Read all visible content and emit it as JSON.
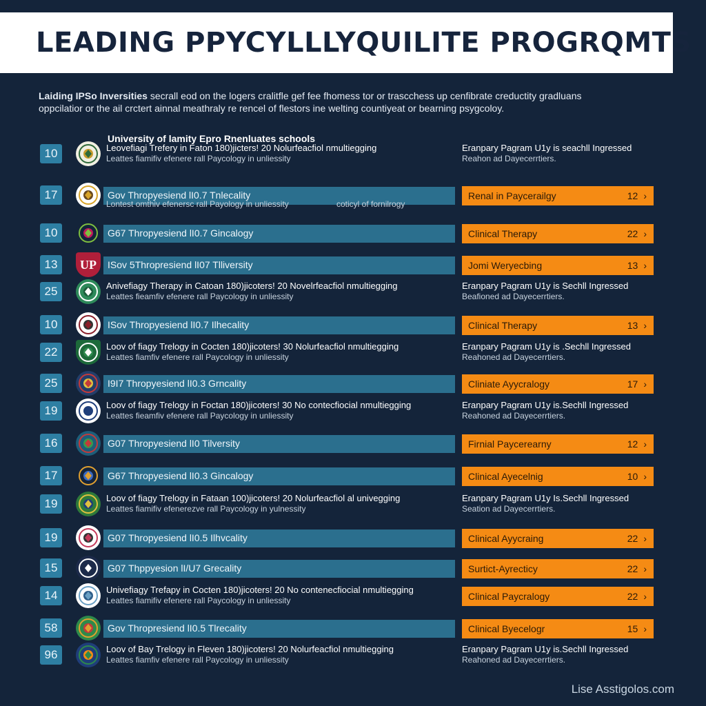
{
  "title": "LEADING PPYCYLLLYQUILITE PROGRQMTS",
  "intro": {
    "lead": "Laiding IPSo Inversities",
    "line1_rest": " secrall eod on the logers cralitfle gef fee fhomess tor or trascchess up cenfibrate creductity gradluans",
    "line2": "oppcilatior or the ail crctert ainnal meathraly re rencel of flestors ine welting countiyeat or bearning psygcoloy."
  },
  "rows": [
    {
      "num": "10",
      "type": "two",
      "head": "University of lamity Epro Rnenluates schools",
      "l1": "Leovefiagi Trefery in Faton 180)jicters! 20 Nolurfeacfiol nmultiegging",
      "l2": "Leattes fiamifiv efenere rall Paycology in unliessity",
      "r1": "Eranpary Pagram U1y is seachll Ingressed",
      "r2": "Reahon ad Dayecerrtiers.",
      "logo": {
        "bg": "#f1efe2",
        "c1": "#2f6a3a",
        "c2": "#c59a2b"
      }
    },
    {
      "num": "17",
      "type": "bar",
      "text": "Gov Thropyesiend lI0.7 Tnlecality",
      "sub": "Lontest omthiv efenersc rall Payology in unliessity",
      "sub2": "coticyl of fornilrogy",
      "orange": "Renal in Paycerailgy",
      "val": "12",
      "logo": {
        "bg": "#ffffff",
        "c1": "#d8a42a",
        "c2": "#6b4a1e"
      }
    },
    {
      "num": "10",
      "type": "bar",
      "text": "G67 Thropyesiend lI0.7 Gincalogy",
      "orange": "Clinical Therapy",
      "val": "22",
      "logo": {
        "bg": "#14243a",
        "c1": "#7fbf3f",
        "c2": "#c2185b"
      }
    },
    {
      "num": "13",
      "type": "bar",
      "text": "ISov 5Thropresiend lI07 Tlliversity",
      "orange": "Jomi Weryecbing",
      "val": "13",
      "logo": {
        "bg": "#b01f3a",
        "c1": "#ffffff",
        "c2": "#b01f3a"
      },
      "logo_text": "UP"
    },
    {
      "num": "25",
      "type": "two",
      "l1": "Anivefiagy Therapy in Catoan 180)jicoters! 20 Novelrfeacfiol nmultiegging",
      "l2": "Leattes fieamfiv efenere rall Paycology in unliessity",
      "r1": "Eranpary Pagram U1y is Sechll Ingressed",
      "r2": "Beafioned ad Dayecerrtiers.",
      "logo": {
        "bg": "#2e8a5a",
        "c1": "#ffffff",
        "c2": "#1c5e3b"
      }
    },
    {
      "num": "10",
      "type": "bar",
      "text": "ISov Thropyesiend lI0.7 Ilhecality",
      "orange": "Clinical Therapy",
      "val": "13",
      "logo": {
        "bg": "#ffffff",
        "c1": "#8a1f2a",
        "c2": "#333333"
      }
    },
    {
      "num": "22",
      "type": "two",
      "l1": "Loov of fiagy Trelogy in Cocten 180)jicoters! 30 Nolurfeacfiol nmultiegging",
      "l2": "Leattes fiamfiv efenere rall Paycology in unliessity",
      "r1": "Eranpary Pagram U1y is .Sechll Ingressed",
      "r2": "Reahoned ad Dayecerrtiers.",
      "logo": {
        "bg": "#1d6a3a",
        "c1": "#ffffff",
        "c2": "#2f8a4e"
      }
    },
    {
      "num": "25",
      "type": "bar",
      "text": "I9I7 Thropyesiend lI0.3 Grncality",
      "orange": "Cliniate Ayycralogy",
      "val": "17",
      "logo": {
        "bg": "#233e6a",
        "c1": "#c43a3a",
        "c2": "#e0c040"
      }
    },
    {
      "num": "19",
      "type": "two",
      "l1": "Loov of fiagy Trelogy in Foctan 180)jicoters! 30 No contecfiocial nmultiegging",
      "l2": "Leattes fieamfiv efenere rall Paycology in unliessity",
      "r1": "Eranpary Pagram U1y is.Sechll Ingressed",
      "r2": "Reahoned ad Dayecerrtiers.",
      "logo": {
        "bg": "#ffffff",
        "c1": "#1f3e7a",
        "c2": "#1f3e7a"
      }
    },
    {
      "num": "16",
      "type": "bar",
      "text": "G07 Thropyesiend lI0 Tilversity",
      "orange": "Firnial Paycerearny",
      "val": "12",
      "logo": {
        "bg": "#1d5e7a",
        "c1": "#c43a3a",
        "c2": "#3a9a4a"
      }
    },
    {
      "num": "17",
      "type": "bar",
      "text": "G67 Thropyesiend lI0.3 Gincalogy",
      "orange": "Clinical Ayecelnig",
      "val": "10",
      "logo": {
        "bg": "#14243a",
        "c1": "#e0a030",
        "c2": "#3a6ac4"
      }
    },
    {
      "num": "19",
      "type": "two",
      "l1": "Loov of fiagy Trelogy in Fataan 100)jicoters! 20 Nolurfeacfiol al univegging",
      "l2": "Leattes fiamifiv efenerezve rall Paycology in yulnessity",
      "r1": "Eranpary Pagram U1y Is.Sechll Ingressed",
      "r2": "Seation ad Dayecerrtiers.",
      "logo": {
        "bg": "#2e7a3a",
        "c1": "#e0c040",
        "c2": "#1f3e7a"
      }
    },
    {
      "num": "19",
      "type": "bar",
      "text": "G07 Thropyesiend lI0.5 Ilhvcality",
      "orange": "Clinical Ayycraing",
      "val": "22",
      "logo": {
        "bg": "#ffffff",
        "c1": "#c43a5a",
        "c2": "#333333"
      }
    },
    {
      "num": "15",
      "type": "bar",
      "text": "G07 Thppyesion lI/U7 Grecality",
      "orange": "Surtict-Ayrecticy",
      "val": "22",
      "logo": {
        "bg": "#1c2a4a",
        "c1": "#ffffff",
        "c2": "#1c2a4a"
      }
    },
    {
      "num": "14",
      "type": "two",
      "l1": "Univefiagy Trefapy in Cocten 180)jicoters! 20 No contenecfiocial nmultiegging",
      "l2": "Leattes fiamifiv efenere rall Paycology in unliessity",
      "orange": "Clinical Paycralogy",
      "val": "22",
      "logo": {
        "bg": "#ffffff",
        "c1": "#6aa0c4",
        "c2": "#2e5e8a"
      }
    },
    {
      "num": "58",
      "type": "bar",
      "text": "Gov Thropresiend lI0.5 Tlrecality",
      "orange": "Clinical Byecelogr",
      "val": "15",
      "logo": {
        "bg": "#2e8a4a",
        "c1": "#e0a030",
        "c2": "#c43a3a"
      }
    },
    {
      "num": "96",
      "type": "two",
      "l1": "Loov of Bay Trelogy in Fleven 180)jicoters! 20 Nolurfeacfiol nmultiegging",
      "l2": "Leattes fiamfiv efenere rall Paycology in unliessity",
      "r1": "Eranpary Pagram U1y is.Sechll Ingressed",
      "r2": "Reahoned ad Dayecerrtiers.",
      "logo": {
        "bg": "#1f3e7a",
        "c1": "#2e8a4a",
        "c2": "#f58b14"
      }
    }
  ],
  "footer": "Lise Asstigolos.com",
  "colors": {
    "background": "#14243a",
    "bar": "#2b6f8e",
    "badge": "#2e7fa3",
    "accent": "#f58b14"
  }
}
